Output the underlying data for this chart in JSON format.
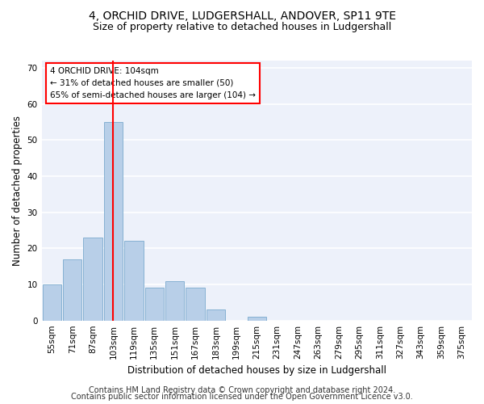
{
  "title1": "4, ORCHID DRIVE, LUDGERSHALL, ANDOVER, SP11 9TE",
  "title2": "Size of property relative to detached houses in Ludgershall",
  "xlabel": "Distribution of detached houses by size in Ludgershall",
  "ylabel": "Number of detached properties",
  "bar_color": "#b8cfe8",
  "bar_edge_color": "#7aaace",
  "background_color": "#edf1fa",
  "grid_color": "#ffffff",
  "categories": [
    "55sqm",
    "71sqm",
    "87sqm",
    "103sqm",
    "119sqm",
    "135sqm",
    "151sqm",
    "167sqm",
    "183sqm",
    "199sqm",
    "215sqm",
    "231sqm",
    "247sqm",
    "263sqm",
    "279sqm",
    "295sqm",
    "311sqm",
    "327sqm",
    "343sqm",
    "359sqm",
    "375sqm"
  ],
  "values": [
    10,
    17,
    23,
    55,
    22,
    9,
    11,
    9,
    3,
    0,
    1,
    0,
    0,
    0,
    0,
    0,
    0,
    0,
    0,
    0,
    0
  ],
  "ylim": [
    0,
    72
  ],
  "yticks": [
    0,
    10,
    20,
    30,
    40,
    50,
    60,
    70
  ],
  "red_line_x": 3.0,
  "annotation_line1": "4 ORCHID DRIVE: 104sqm",
  "annotation_line2": "← 31% of detached houses are smaller (50)",
  "annotation_line3": "65% of semi-detached houses are larger (104) →",
  "footer1": "Contains HM Land Registry data © Crown copyright and database right 2024.",
  "footer2": "Contains public sector information licensed under the Open Government Licence v3.0.",
  "title1_fontsize": 10,
  "title2_fontsize": 9,
  "xlabel_fontsize": 8.5,
  "ylabel_fontsize": 8.5,
  "tick_fontsize": 7.5,
  "annot_fontsize": 7.5,
  "footer_fontsize": 7
}
